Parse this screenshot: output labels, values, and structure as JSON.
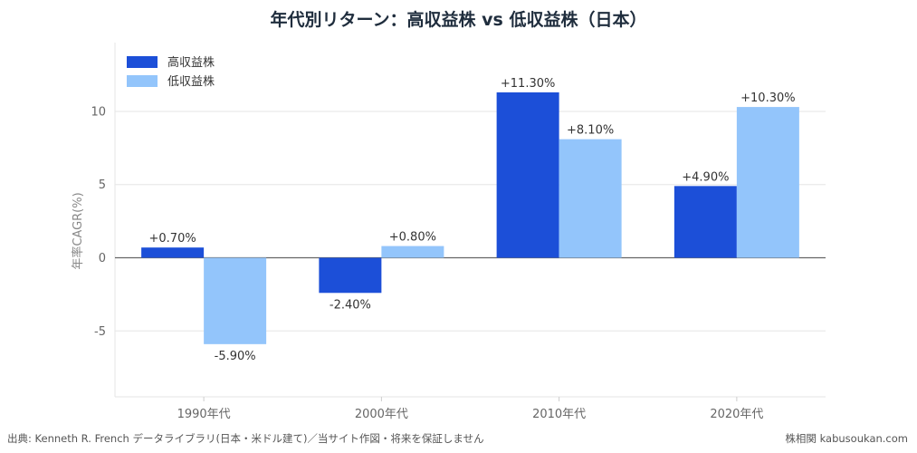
{
  "title": "年代別リターン：高収益株 vs 低収益株（日本）",
  "footer": {
    "source": "出典: Kenneth R. French データライブラリ(日本・米ドル建て)／当サイト作図・将来を保証しません",
    "site": "株相関 kabusoukan.com"
  },
  "chart_data": {
    "type": "bar",
    "title": "年代別リターン：高収益株 vs 低収益株（日本）",
    "xlabel": "",
    "ylabel": "年率CAGR(%)",
    "categories": [
      "1990年代",
      "2000年代",
      "2010年代",
      "2020年代"
    ],
    "series": [
      {
        "name": "高収益株",
        "color": "#1c4fd8",
        "values": [
          0.7,
          -2.4,
          11.3,
          4.9
        ],
        "labels": [
          "+0.70%",
          "-2.40%",
          "+11.30%",
          "+4.90%"
        ]
      },
      {
        "name": "低収益株",
        "color": "#93c5fb",
        "values": [
          -5.9,
          0.8,
          8.1,
          10.3
        ],
        "labels": [
          "-5.90%",
          "+0.80%",
          "+8.10%",
          "+10.30%"
        ]
      }
    ],
    "ylim": [
      -9.5,
      14.7
    ],
    "yticks": [
      -5,
      0,
      5,
      10
    ],
    "ytick_labels": [
      "-5",
      "0",
      "5",
      "10"
    ],
    "grid": true,
    "legend": "top-left"
  }
}
